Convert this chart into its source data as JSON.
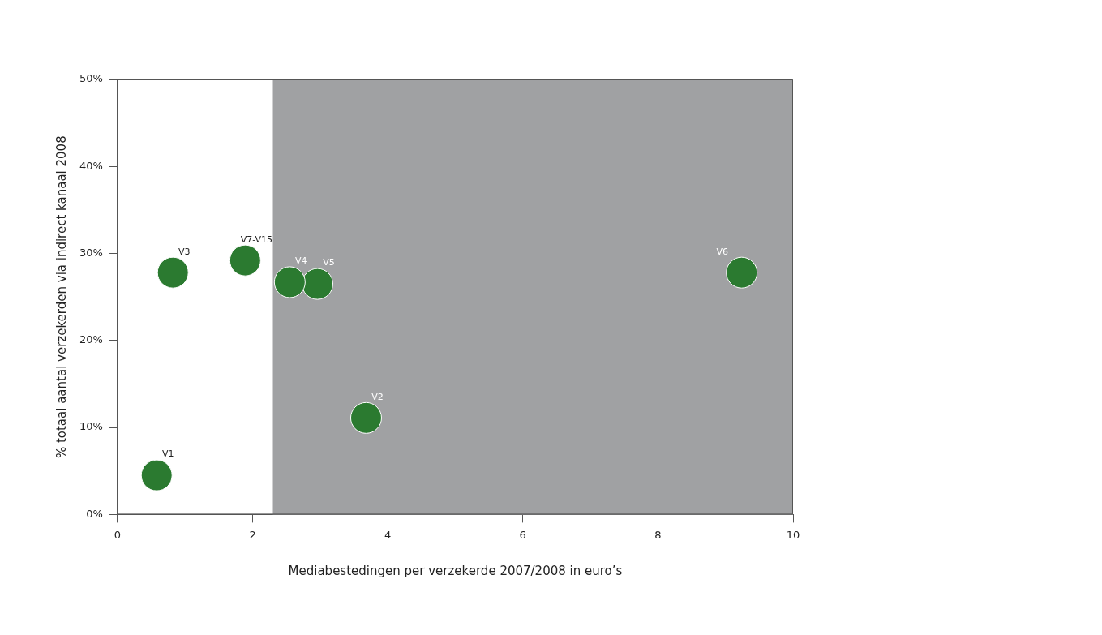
{
  "chart_data": {
    "type": "scatter",
    "xlabel": "Mediabestedingen per verzekerde 2007/2008 in euro’s",
    "ylabel": "% totaal aantal verzekerden via indirect kanaal 2008",
    "series": [
      {
        "name": "V1",
        "color": "#2b7a30",
        "x": [
          0.58
        ],
        "values": [
          4.5
        ]
      },
      {
        "name": "V3",
        "color": "#2b7a30",
        "x": [
          0.82
        ],
        "values": [
          27.8
        ]
      },
      {
        "name": "V7-V15",
        "color": "#2b7a30",
        "x": [
          1.89
        ],
        "values": [
          29.2
        ]
      },
      {
        "name": "V4",
        "color": "#2b7a30",
        "x": [
          2.55
        ],
        "values": [
          26.7
        ]
      },
      {
        "name": "V5",
        "color": "#2b7a30",
        "x": [
          2.96
        ],
        "values": [
          26.5
        ]
      },
      {
        "name": "V2",
        "color": "#2b7a30",
        "x": [
          3.68
        ],
        "values": [
          11.1
        ]
      },
      {
        "name": "V6",
        "color": "#2b7a30",
        "x": [
          9.24
        ],
        "values": [
          27.8
        ]
      }
    ],
    "xlim": [
      0,
      10
    ],
    "xticks": [
      0,
      2,
      4,
      6,
      8,
      10
    ],
    "ylim": [
      0,
      50
    ],
    "yticks": [
      {
        "value": 0,
        "label": "0%"
      },
      {
        "value": 10,
        "label": "10%"
      },
      {
        "value": 20,
        "label": "20%"
      },
      {
        "value": 30,
        "label": "30%"
      },
      {
        "value": 40,
        "label": "40%"
      },
      {
        "value": 50,
        "label": "50%"
      }
    ],
    "bands": [
      {
        "axis": "x",
        "from": 2.3,
        "to": 10,
        "color": "#a0a1a3"
      }
    ],
    "marker": "circle",
    "grid": false,
    "legend": false
  }
}
